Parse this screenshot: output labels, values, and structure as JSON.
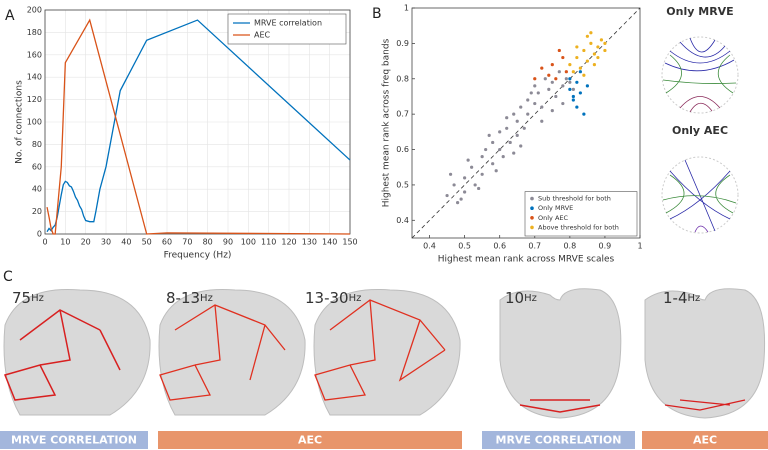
{
  "chart_data": [
    {
      "type": "line",
      "panel": "A",
      "xlabel": "Frequency (Hz)",
      "ylabel": "No. of connections",
      "xlim": [
        0,
        150
      ],
      "xticks": [
        0,
        10,
        20,
        30,
        40,
        50,
        60,
        70,
        80,
        90,
        100,
        110,
        120,
        130,
        140,
        150
      ],
      "ylim": [
        0,
        200
      ],
      "yticks": [
        0,
        20,
        40,
        60,
        80,
        100,
        120,
        140,
        160,
        180,
        200
      ],
      "grid": true,
      "legend": "top-right",
      "series": [
        {
          "name": "MRVE correlation",
          "color": "#0072bd",
          "x": [
            1,
            2,
            3,
            4,
            5,
            6,
            7,
            8,
            9,
            10,
            11,
            12,
            13,
            14,
            15,
            16,
            17,
            18,
            19,
            20,
            22,
            24,
            25,
            27,
            30,
            37,
            50,
            75,
            150
          ],
          "values": [
            2,
            5,
            3,
            6,
            8,
            15,
            25,
            35,
            44,
            47,
            46,
            43,
            42,
            38,
            33,
            30,
            25,
            22,
            16,
            12,
            11,
            11,
            20,
            40,
            60,
            128,
            173,
            191,
            66
          ]
        },
        {
          "name": "AEC",
          "color": "#d95319",
          "x": [
            1,
            2,
            3,
            4,
            5,
            8,
            10,
            22,
            50,
            60,
            150
          ],
          "values": [
            24,
            15,
            5,
            0,
            0,
            60,
            153,
            191,
            0,
            1,
            0
          ]
        }
      ]
    },
    {
      "type": "scatter",
      "panel": "B",
      "xlabel": "Highest mean rank across MRVE scales",
      "ylabel": "Highest mean rank across freq bands",
      "xlim": [
        0.35,
        1
      ],
      "xticks": [
        0.4,
        0.5,
        0.6,
        0.7,
        0.8,
        0.9,
        1
      ],
      "ylim": [
        0.35,
        1
      ],
      "yticks": [
        0.4,
        0.5,
        0.6,
        0.7,
        0.8,
        0.9,
        1
      ],
      "legend": "bottom-right",
      "series": [
        {
          "name": "Sub threshold for both",
          "color": "#8c8a96",
          "x": [
            0.45,
            0.47,
            0.48,
            0.5,
            0.5,
            0.52,
            0.53,
            0.55,
            0.55,
            0.56,
            0.58,
            0.58,
            0.6,
            0.6,
            0.61,
            0.62,
            0.63,
            0.64,
            0.65,
            0.65,
            0.66,
            0.67,
            0.68,
            0.68,
            0.7,
            0.7,
            0.71,
            0.72,
            0.73,
            0.74,
            0.75,
            0.76,
            0.77,
            0.78,
            0.79,
            0.8,
            0.46,
            0.49,
            0.51,
            0.54,
            0.57,
            0.59,
            0.62,
            0.64,
            0.66,
            0.69,
            0.72,
            0.75,
            0.78,
            0.81
          ],
          "values": [
            0.47,
            0.5,
            0.45,
            0.52,
            0.48,
            0.55,
            0.5,
            0.58,
            0.53,
            0.6,
            0.56,
            0.62,
            0.6,
            0.65,
            0.58,
            0.66,
            0.62,
            0.7,
            0.64,
            0.68,
            0.72,
            0.66,
            0.74,
            0.7,
            0.73,
            0.78,
            0.76,
            0.72,
            0.8,
            0.77,
            0.79,
            0.75,
            0.82,
            0.78,
            0.8,
            0.79,
            0.53,
            0.46,
            0.57,
            0.49,
            0.64,
            0.54,
            0.69,
            0.59,
            0.61,
            0.76,
            0.68,
            0.71,
            0.73,
            0.77
          ]
        },
        {
          "name": "Only MRVE",
          "color": "#0072bd",
          "x": [
            0.8,
            0.81,
            0.82,
            0.82,
            0.83,
            0.84,
            0.8,
            0.83,
            0.85,
            0.81
          ],
          "values": [
            0.77,
            0.74,
            0.72,
            0.79,
            0.76,
            0.7,
            0.8,
            0.82,
            0.78,
            0.75
          ]
        },
        {
          "name": "Only AEC",
          "color": "#d95319",
          "x": [
            0.7,
            0.72,
            0.75,
            0.76,
            0.78,
            0.79,
            0.77,
            0.74
          ],
          "values": [
            0.8,
            0.83,
            0.84,
            0.8,
            0.86,
            0.82,
            0.88,
            0.81
          ]
        },
        {
          "name": "Above threshold for both",
          "color": "#edb120",
          "x": [
            0.8,
            0.82,
            0.83,
            0.84,
            0.85,
            0.86,
            0.87,
            0.88,
            0.89,
            0.9,
            0.81,
            0.85,
            0.87,
            0.9,
            0.84,
            0.88,
            0.86,
            0.82
          ],
          "values": [
            0.84,
            0.86,
            0.83,
            0.88,
            0.85,
            0.9,
            0.87,
            0.89,
            0.91,
            0.88,
            0.82,
            0.92,
            0.84,
            0.9,
            0.81,
            0.86,
            0.93,
            0.89
          ]
        }
      ]
    }
  ],
  "circles": [
    {
      "title": "Only MRVE",
      "color": "#1f6fc0"
    },
    {
      "title": "Only AEC",
      "color": "#e87030"
    }
  ],
  "panel_c": {
    "label": "C",
    "frequencies": [
      {
        "text": "75",
        "unit": "Hz",
        "color": "#3a78b8"
      },
      {
        "text": "8-13",
        "unit": "Hz",
        "color": "#e07a40"
      },
      {
        "text": "13-30",
        "unit": "Hz",
        "color": "#e07a40"
      },
      {
        "text": "10",
        "unit": "Hz",
        "color": "#3a78b8"
      },
      {
        "text": "1-4",
        "unit": "Hz",
        "color": "#e07a40"
      }
    ],
    "bars": [
      {
        "label": "MRVE CORRELATION",
        "color": "#a3b6dc"
      },
      {
        "label": "AEC",
        "color": "#e8956b"
      },
      {
        "label": "MRVE CORRELATION",
        "color": "#a3b6dc"
      },
      {
        "label": "AEC",
        "color": "#e8956b"
      }
    ]
  }
}
